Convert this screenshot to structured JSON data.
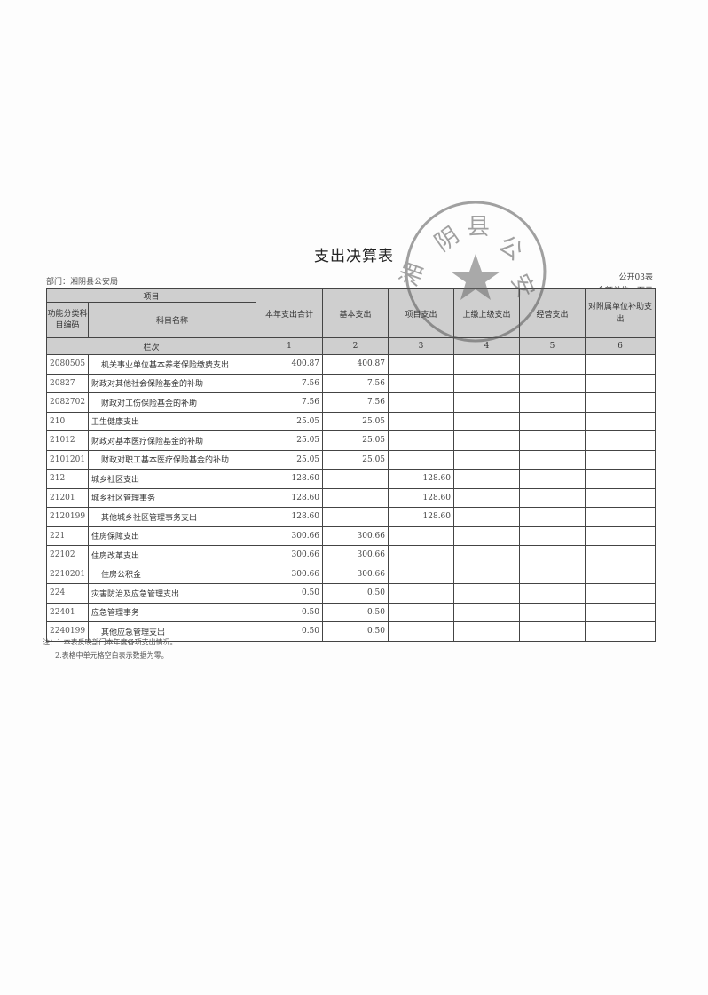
{
  "title": "支出决算表",
  "department": "部门：湘阴县公安局",
  "form_no": "公开03表",
  "unit": "金额单位：万元",
  "headers": {
    "item": "项目",
    "code": "功能分类科目编码",
    "name": "科目名称",
    "total": "本年支出合计",
    "basic": "基本支出",
    "project": "项目支出",
    "upper": "上缴上级支出",
    "business": "经营支出",
    "subsidy": "对附属单位补助支出",
    "column_no": "栏次",
    "nums": [
      "1",
      "2",
      "3",
      "4",
      "5",
      "6"
    ]
  },
  "rows": [
    {
      "code": "2080505",
      "name": "机关事业单位基本养老保险缴费支出",
      "total": "400.87",
      "basic": "400.87",
      "project": "",
      "indent": true
    },
    {
      "code": "20827",
      "name": "财政对其他社会保险基金的补助",
      "total": "7.56",
      "basic": "7.56",
      "project": ""
    },
    {
      "code": "2082702",
      "name": "财政对工伤保险基金的补助",
      "total": "7.56",
      "basic": "7.56",
      "project": "",
      "indent": true
    },
    {
      "code": "210",
      "name": "卫生健康支出",
      "total": "25.05",
      "basic": "25.05",
      "project": ""
    },
    {
      "code": "21012",
      "name": "财政对基本医疗保险基金的补助",
      "total": "25.05",
      "basic": "25.05",
      "project": ""
    },
    {
      "code": "2101201",
      "name": "财政对职工基本医疗保险基金的补助",
      "total": "25.05",
      "basic": "25.05",
      "project": "",
      "indent": true
    },
    {
      "code": "212",
      "name": "城乡社区支出",
      "total": "128.60",
      "basic": "",
      "project": "128.60"
    },
    {
      "code": "21201",
      "name": "城乡社区管理事务",
      "total": "128.60",
      "basic": "",
      "project": "128.60"
    },
    {
      "code": "2120199",
      "name": "其他城乡社区管理事务支出",
      "total": "128.60",
      "basic": "",
      "project": "128.60",
      "indent": true
    },
    {
      "code": "221",
      "name": "住房保障支出",
      "total": "300.66",
      "basic": "300.66",
      "project": ""
    },
    {
      "code": "22102",
      "name": "住房改革支出",
      "total": "300.66",
      "basic": "300.66",
      "project": ""
    },
    {
      "code": "2210201",
      "name": "住房公积金",
      "total": "300.66",
      "basic": "300.66",
      "project": "",
      "indent": true
    },
    {
      "code": "224",
      "name": "灾害防治及应急管理支出",
      "total": "0.50",
      "basic": "0.50",
      "project": ""
    },
    {
      "code": "22401",
      "name": "应急管理事务",
      "total": "0.50",
      "basic": "0.50",
      "project": ""
    },
    {
      "code": "2240199",
      "name": "其他应急管理支出",
      "total": "0.50",
      "basic": "0.50",
      "project": "",
      "indent": true
    }
  ],
  "notes": [
    "注：1.本表反映部门本年度各项支出情况。",
    "2.表格中单元格空白表示数据为零。"
  ],
  "stamp": {
    "text": "湘阴县公安局",
    "color": "#555555"
  }
}
